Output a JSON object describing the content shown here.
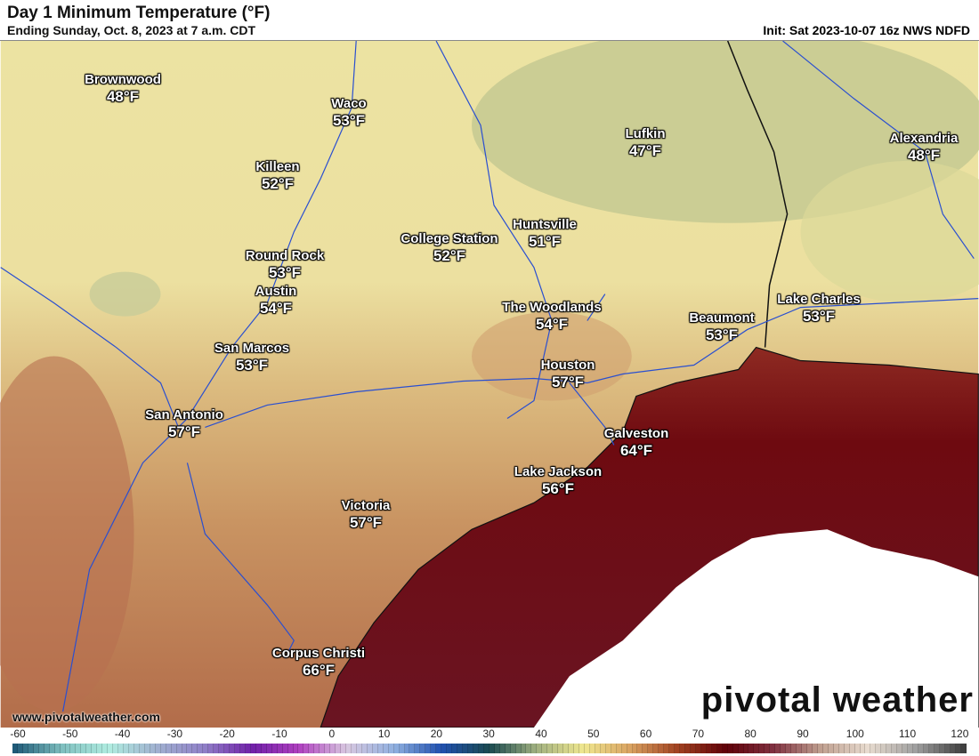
{
  "header": {
    "title": "Day 1 Minimum Temperature (°F)",
    "subtitle": "Ending Sunday, Oct. 8, 2023 at 7 a.m. CDT",
    "init": "Init: Sat 2023-10-07 16z NWS NDFD"
  },
  "cities": [
    {
      "name": "Brownwood",
      "temp": "48°F"
    },
    {
      "name": "Waco",
      "temp": "53°F"
    },
    {
      "name": "Killeen",
      "temp": "52°F"
    },
    {
      "name": "Lufkin",
      "temp": "47°F"
    },
    {
      "name": "Alexandria",
      "temp": "48°F"
    },
    {
      "name": "College Station",
      "temp": "52°F"
    },
    {
      "name": "Huntsville",
      "temp": "51°F"
    },
    {
      "name": "Round Rock",
      "temp": "53°F"
    },
    {
      "name": "Austin",
      "temp": "54°F"
    },
    {
      "name": "The Woodlands",
      "temp": "54°F"
    },
    {
      "name": "Beaumont",
      "temp": "53°F"
    },
    {
      "name": "Lake Charles",
      "temp": "53°F"
    },
    {
      "name": "San Marcos",
      "temp": "53°F"
    },
    {
      "name": "Houston",
      "temp": "57°F"
    },
    {
      "name": "San Antonio",
      "temp": "57°F"
    },
    {
      "name": "Galveston",
      "temp": "64°F"
    },
    {
      "name": "Lake Jackson",
      "temp": "56°F"
    },
    {
      "name": "Victoria",
      "temp": "57°F"
    },
    {
      "name": "Corpus Christi",
      "temp": "66°F"
    }
  ],
  "footer": {
    "website": "www.pivotalweather.com",
    "logo": "pivotal weather"
  },
  "colorbar": {
    "ticks": [
      "-60",
      "-50",
      "-40",
      "-30",
      "-20",
      "-10",
      "0",
      "10",
      "20",
      "30",
      "40",
      "50",
      "60",
      "70",
      "80",
      "90",
      "100",
      "110",
      "120"
    ],
    "stops": [
      "#1f5a78",
      "#7fc0c0",
      "#b0ece0",
      "#a0b0d0",
      "#9080c8",
      "#7020a8",
      "#b040c0",
      "#d8c8e0",
      "#90b0e0",
      "#2050b0",
      "#1a4a50",
      "#a0b080",
      "#f0e890",
      "#d8a060",
      "#a04020",
      "#600008",
      "#803040",
      "#c0a090",
      "#e8dcd0",
      "#a0a0a0",
      "#404040"
    ]
  }
}
